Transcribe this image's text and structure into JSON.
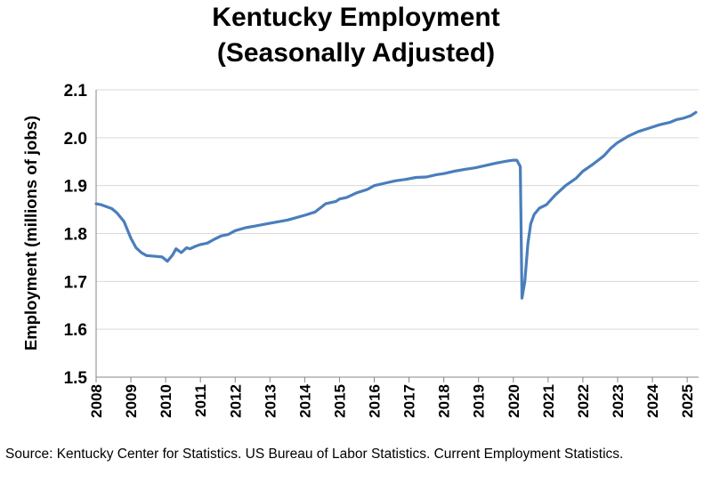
{
  "title_line1": "Kentucky Employment",
  "title_line2": "(Seasonally Adjusted)",
  "source": "Source: Kentucky Center for Statistics. US Bureau of Labor Statistics. Current Employment Statistics.",
  "line_color": "#4a7ebb",
  "grid_color": "#d9d9d9",
  "chart_data": {
    "type": "line",
    "title": "Kentucky Employment (Seasonally Adjusted)",
    "xlabel": "",
    "ylabel": "Employment (millions of jobs)",
    "ylim": [
      1.5,
      2.1
    ],
    "xlim": [
      2008,
      2025.33
    ],
    "yticks": [
      "1.5",
      "1.6",
      "1.7",
      "1.8",
      "1.9",
      "2.0",
      "2.1"
    ],
    "xticks": [
      "2008",
      "2009",
      "2010",
      "2011",
      "2012",
      "2013",
      "2014",
      "2015",
      "2016",
      "2017",
      "2018",
      "2019",
      "2020",
      "2021",
      "2022",
      "2023",
      "2024",
      "2025"
    ],
    "grid": "horizontal",
    "series": [
      {
        "x": [
          2008.0,
          2008.15,
          2008.3,
          2008.45,
          2008.6,
          2008.8,
          2009.0,
          2009.15,
          2009.3,
          2009.45,
          2009.6,
          2009.75,
          2009.9,
          2010.05,
          2010.2,
          2010.3,
          2010.45,
          2010.6,
          2010.7,
          2010.85,
          2011.0,
          2011.2,
          2011.4,
          2011.6,
          2011.8,
          2012.0,
          2012.3,
          2012.6,
          2012.9,
          2013.2,
          2013.5,
          2013.8,
          2014.0,
          2014.3,
          2014.6,
          2014.9,
          2015.0,
          2015.2,
          2015.5,
          2015.8,
          2016.0,
          2016.3,
          2016.6,
          2016.9,
          2017.2,
          2017.5,
          2017.8,
          2018.0,
          2018.3,
          2018.6,
          2018.9,
          2019.2,
          2019.5,
          2019.8,
          2020.0,
          2020.1,
          2020.2,
          2020.25,
          2020.33,
          2020.42,
          2020.5,
          2020.6,
          2020.75,
          2020.95,
          2021.2,
          2021.5,
          2021.8,
          2022.0,
          2022.3,
          2022.6,
          2022.8,
          2023.0,
          2023.3,
          2023.6,
          2023.9,
          2024.2,
          2024.5,
          2024.7,
          2024.9,
          2025.1,
          2025.25
        ],
        "values": [
          1.862,
          1.86,
          1.856,
          1.852,
          1.843,
          1.825,
          1.79,
          1.77,
          1.76,
          1.754,
          1.753,
          1.752,
          1.751,
          1.742,
          1.755,
          1.768,
          1.76,
          1.77,
          1.768,
          1.773,
          1.777,
          1.78,
          1.788,
          1.795,
          1.798,
          1.806,
          1.812,
          1.816,
          1.82,
          1.824,
          1.828,
          1.834,
          1.838,
          1.845,
          1.862,
          1.867,
          1.872,
          1.875,
          1.885,
          1.892,
          1.9,
          1.905,
          1.91,
          1.913,
          1.917,
          1.918,
          1.923,
          1.925,
          1.93,
          1.934,
          1.937,
          1.942,
          1.947,
          1.951,
          1.953,
          1.953,
          1.94,
          1.665,
          1.7,
          1.78,
          1.82,
          1.84,
          1.853,
          1.86,
          1.88,
          1.9,
          1.915,
          1.93,
          1.945,
          1.962,
          1.978,
          1.99,
          2.003,
          2.013,
          2.02,
          2.027,
          2.032,
          2.038,
          2.041,
          2.046,
          2.053
        ]
      }
    ]
  }
}
